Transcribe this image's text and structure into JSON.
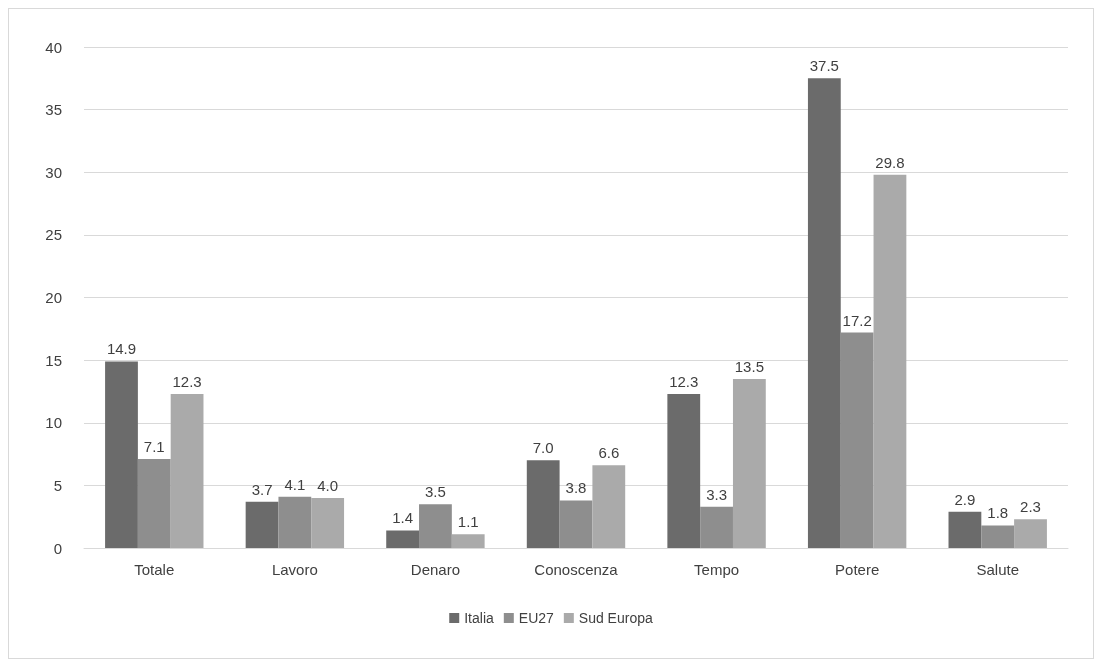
{
  "chart_data": {
    "type": "bar",
    "categories": [
      "Totale",
      "Lavoro",
      "Denaro",
      "Conoscenza",
      "Tempo",
      "Potere",
      "Salute"
    ],
    "series": [
      {
        "name": "Italia",
        "color": "#6b6b6b",
        "values": [
          14.9,
          3.7,
          1.4,
          7.0,
          12.3,
          37.5,
          2.9
        ],
        "value_labels": [
          "14.9",
          "3.7",
          "1.4",
          "7.0",
          "12.3",
          "37.5",
          "2.9"
        ]
      },
      {
        "name": "EU27",
        "color": "#8e8e8e",
        "values": [
          7.1,
          4.1,
          3.5,
          3.8,
          3.3,
          17.2,
          1.8
        ],
        "value_labels": [
          "7.1",
          "4.1",
          "3.5",
          "3.8",
          "3.3",
          "17.2",
          "1.8"
        ]
      },
      {
        "name": "Sud Europa",
        "color": "#aaaaaa",
        "values": [
          12.3,
          4.0,
          1.1,
          6.6,
          13.5,
          29.8,
          2.3
        ],
        "value_labels": [
          "12.3",
          "4.0",
          "1.1",
          "6.6",
          "13.5",
          "29.8",
          "2.3"
        ]
      }
    ],
    "ylim": [
      0,
      40
    ],
    "yticks": [
      0,
      5,
      10,
      15,
      20,
      25,
      30,
      35,
      40
    ],
    "grid": "y",
    "legend": "bottom"
  }
}
